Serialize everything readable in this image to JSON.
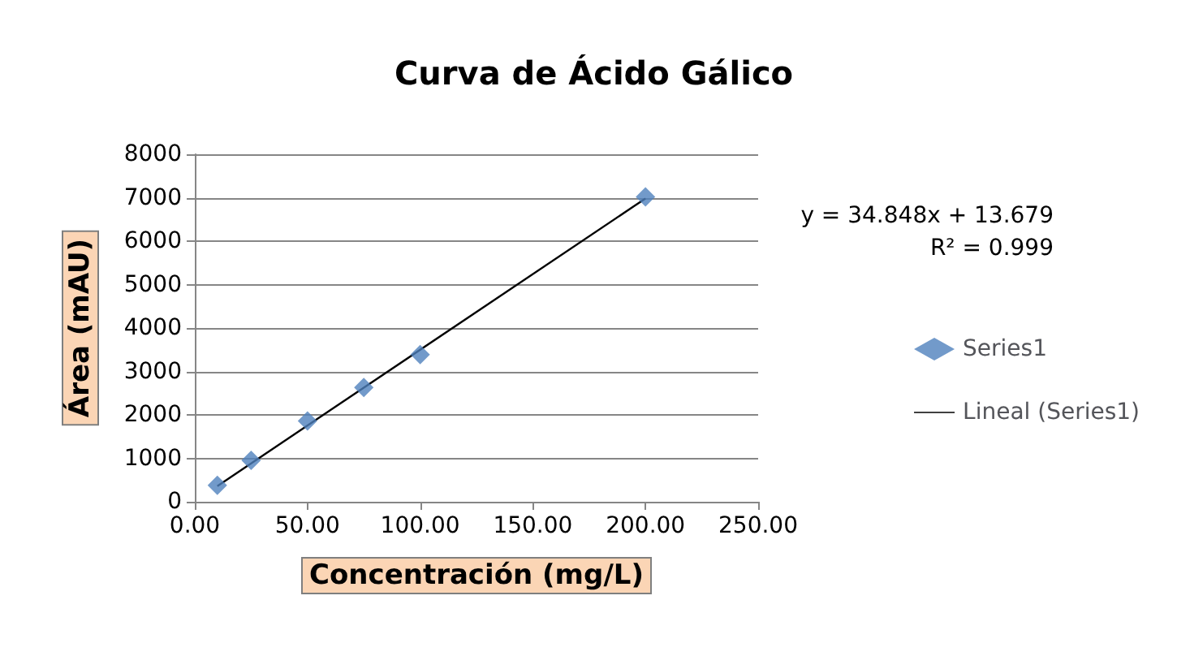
{
  "chart_data": {
    "type": "scatter",
    "title": "Curva de Ácido Gálico",
    "xlabel": "Concentración (mg/L)",
    "ylabel": "Área (mAU)",
    "x": [
      10,
      25,
      50,
      75,
      100,
      200
    ],
    "series": [
      {
        "name": "Series1",
        "color": "#4f81bd",
        "marker": "diamond",
        "values": [
          380,
          954,
          1860,
          2630,
          3390,
          7020
        ]
      },
      {
        "name": "Lineal (Series1)",
        "type": "line",
        "color": "#000000",
        "marker": "none",
        "x": [
          10,
          200
        ],
        "values": [
          362,
          6983
        ]
      }
    ],
    "xlim": [
      0,
      250
    ],
    "xticks": [
      {
        "value": 0,
        "label": "0.00"
      },
      {
        "value": 50,
        "label": "50.00"
      },
      {
        "value": 100,
        "label": "100.00"
      },
      {
        "value": 150,
        "label": "150.00"
      },
      {
        "value": 200,
        "label": "200.00"
      },
      {
        "value": 250,
        "label": "250.00"
      }
    ],
    "ylim": [
      0,
      8000
    ],
    "yticks": [
      0,
      1000,
      2000,
      3000,
      4000,
      5000,
      6000,
      7000,
      8000
    ],
    "grid": "y",
    "legend": "right",
    "annotations": [
      "y = 34.848x + 13.679",
      "R² = 0.999"
    ]
  }
}
